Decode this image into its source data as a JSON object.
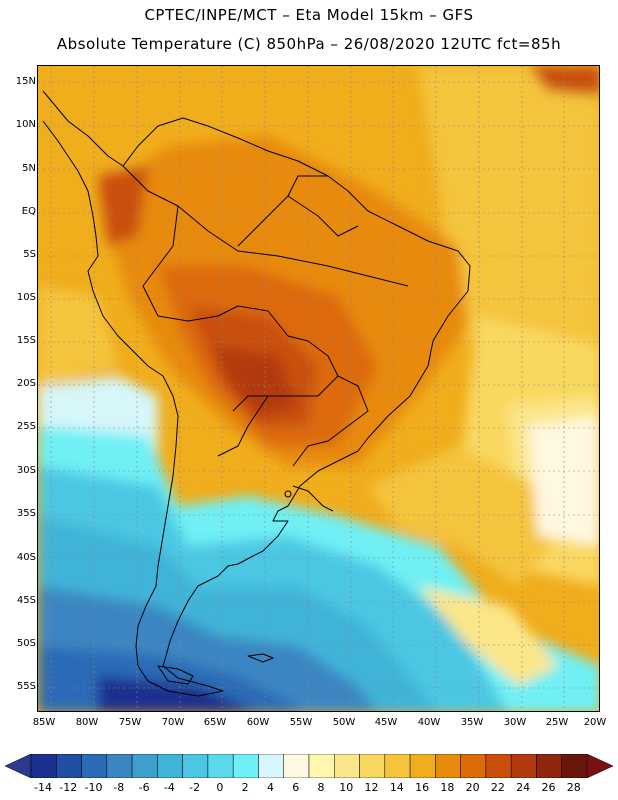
{
  "header": {
    "line1": "CPTEC/INPE/MCT –  Eta Model 15km – GFS",
    "line2": "Absolute Temperature (C) 850hPa – 26/08/2020 12UTC fct=85h"
  },
  "map": {
    "lat_labels": [
      "15N",
      "10N",
      "5N",
      "EQ",
      "5S",
      "10S",
      "15S",
      "20S",
      "25S",
      "30S",
      "35S",
      "40S",
      "45S",
      "50S",
      "55S"
    ],
    "lon_labels": [
      "85W",
      "80W",
      "75W",
      "70W",
      "65W",
      "60W",
      "55W",
      "50W",
      "45W",
      "40W",
      "35W",
      "30W",
      "25W",
      "20W"
    ],
    "region": "South America",
    "variable": "850hPa temperature"
  },
  "colorbar": {
    "labels": [
      "-14",
      "-12",
      "-10",
      "-8",
      "-6",
      "-4",
      "-2",
      "0",
      "2",
      "4",
      "6",
      "8",
      "10",
      "12",
      "14",
      "16",
      "18",
      "20",
      "22",
      "24",
      "26",
      "28"
    ],
    "colors": [
      "#1b2f8e",
      "#1f4ea3",
      "#2b6bb6",
      "#3a86c2",
      "#3d9ecf",
      "#3fb4d8",
      "#4cc7e3",
      "#5ad9ea",
      "#6ff0f5",
      "#d6f6fa",
      "#fff8e0",
      "#fff6b0",
      "#fce68a",
      "#f9d861",
      "#f5c43c",
      "#f0ad1c",
      "#e88a0c",
      "#dd6a08",
      "#c94f0a",
      "#b23a0d",
      "#8f250d",
      "#6b160c"
    ],
    "under_color": "#2a3a8e",
    "over_color": "#7a1010"
  }
}
